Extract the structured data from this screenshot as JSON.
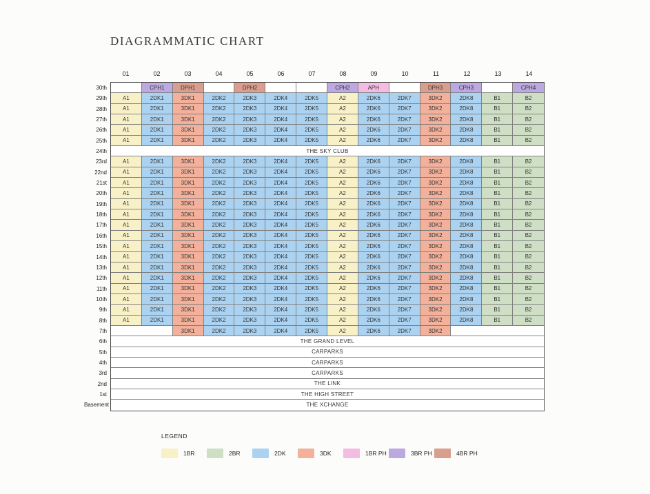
{
  "title": "DIAGRAMMATIC CHART",
  "palette": {
    "1BR": "#F8F0C7",
    "2BR": "#CEDFC5",
    "2DK": "#ABD3F1",
    "3DK": "#F3B19C",
    "1BR PH": "#F3BCE2",
    "3BR PH": "#BDA9E1",
    "4BR PH": "#D99E8D",
    "empty": "#FFFFFF"
  },
  "grid": {
    "columns": [
      "01",
      "02",
      "03",
      "04",
      "05",
      "06",
      "07",
      "08",
      "09",
      "10",
      "11",
      "12",
      "13",
      "14"
    ],
    "templates": {
      "penthouse": [
        {
          "u": "",
          "k": "empty"
        },
        {
          "u": "CPH1",
          "k": "3BR PH"
        },
        {
          "u": "DPH1",
          "k": "4BR PH"
        },
        {
          "u": "",
          "k": "empty"
        },
        {
          "u": "DPH2",
          "k": "4BR PH"
        },
        {
          "u": "",
          "k": "empty"
        },
        {
          "u": "",
          "k": "empty"
        },
        {
          "u": "CPH2",
          "k": "3BR PH"
        },
        {
          "u": "APH",
          "k": "1BR PH"
        },
        {
          "u": "",
          "k": "empty"
        },
        {
          "u": "DPH3",
          "k": "4BR PH"
        },
        {
          "u": "CPH3",
          "k": "3BR PH"
        },
        {
          "u": "",
          "k": "empty"
        },
        {
          "u": "CPH4",
          "k": "3BR PH"
        }
      ],
      "standard": [
        {
          "u": "A1",
          "k": "1BR"
        },
        {
          "u": "2DK1",
          "k": "2DK"
        },
        {
          "u": "3DK1",
          "k": "3DK"
        },
        {
          "u": "2DK2",
          "k": "2DK"
        },
        {
          "u": "2DK3",
          "k": "2DK"
        },
        {
          "u": "2DK4",
          "k": "2DK"
        },
        {
          "u": "2DK5",
          "k": "2DK"
        },
        {
          "u": "A2",
          "k": "1BR"
        },
        {
          "u": "2DK6",
          "k": "2DK"
        },
        {
          "u": "2DK7",
          "k": "2DK"
        },
        {
          "u": "3DK2",
          "k": "3DK"
        },
        {
          "u": "2DK8",
          "k": "2DK"
        },
        {
          "u": "B1",
          "k": "2BR"
        },
        {
          "u": "B2",
          "k": "2BR"
        }
      ],
      "seventh": [
        {
          "u": "",
          "k": "empty",
          "span": 2
        },
        {
          "u": "3DK1",
          "k": "3DK"
        },
        {
          "u": "2DK2",
          "k": "2DK"
        },
        {
          "u": "2DK3",
          "k": "2DK"
        },
        {
          "u": "2DK4",
          "k": "2DK"
        },
        {
          "u": "2DK5",
          "k": "2DK"
        },
        {
          "u": "A2",
          "k": "1BR"
        },
        {
          "u": "2DK6",
          "k": "2DK"
        },
        {
          "u": "2DK7",
          "k": "2DK"
        },
        {
          "u": "3DK2",
          "k": "3DK"
        },
        {
          "u": "",
          "k": "empty",
          "span": 3
        }
      ]
    },
    "rows": [
      {
        "label": "30th",
        "template": "penthouse"
      },
      {
        "label": "29th",
        "template": "standard"
      },
      {
        "label": "28th",
        "template": "standard"
      },
      {
        "label": "27th",
        "template": "standard"
      },
      {
        "label": "26th",
        "template": "standard"
      },
      {
        "label": "25th",
        "template": "standard"
      },
      {
        "label": "24th",
        "banner": "THE SKY CLUB"
      },
      {
        "label": "23rd",
        "template": "standard"
      },
      {
        "label": "22nd",
        "template": "standard"
      },
      {
        "label": "21st",
        "template": "standard"
      },
      {
        "label": "20th",
        "template": "standard"
      },
      {
        "label": "19th",
        "template": "standard"
      },
      {
        "label": "18th",
        "template": "standard"
      },
      {
        "label": "17th",
        "template": "standard"
      },
      {
        "label": "16th",
        "template": "standard"
      },
      {
        "label": "15th",
        "template": "standard"
      },
      {
        "label": "14th",
        "template": "standard"
      },
      {
        "label": "13th",
        "template": "standard"
      },
      {
        "label": "12th",
        "template": "standard"
      },
      {
        "label": "11th",
        "template": "standard"
      },
      {
        "label": "10th",
        "template": "standard"
      },
      {
        "label": "9th",
        "template": "standard"
      },
      {
        "label": "8th",
        "template": "standard"
      },
      {
        "label": "7th",
        "template": "seventh"
      },
      {
        "label": "6th",
        "banner": "THE GRAND LEVEL"
      },
      {
        "label": "5th",
        "banner": "CARPARKS"
      },
      {
        "label": "4th",
        "banner": "CARPARKS"
      },
      {
        "label": "3rd",
        "banner": "CARPARKS"
      },
      {
        "label": "2nd",
        "banner": "THE LINK"
      },
      {
        "label": "1st",
        "banner": "THE HIGH STREET"
      },
      {
        "label": "Basement",
        "banner": "THE XCHANGE"
      }
    ]
  },
  "legend": {
    "title": "LEGEND",
    "items": [
      {
        "label": "1BR",
        "key": "1BR"
      },
      {
        "label": "2BR",
        "key": "2BR"
      },
      {
        "label": "2DK",
        "key": "2DK"
      },
      {
        "label": "3DK",
        "key": "3DK"
      },
      {
        "label": "1BR PH",
        "key": "1BR PH"
      },
      {
        "label": "3BR PH",
        "key": "3BR PH"
      },
      {
        "label": "4BR PH",
        "key": "4BR PH"
      }
    ]
  }
}
